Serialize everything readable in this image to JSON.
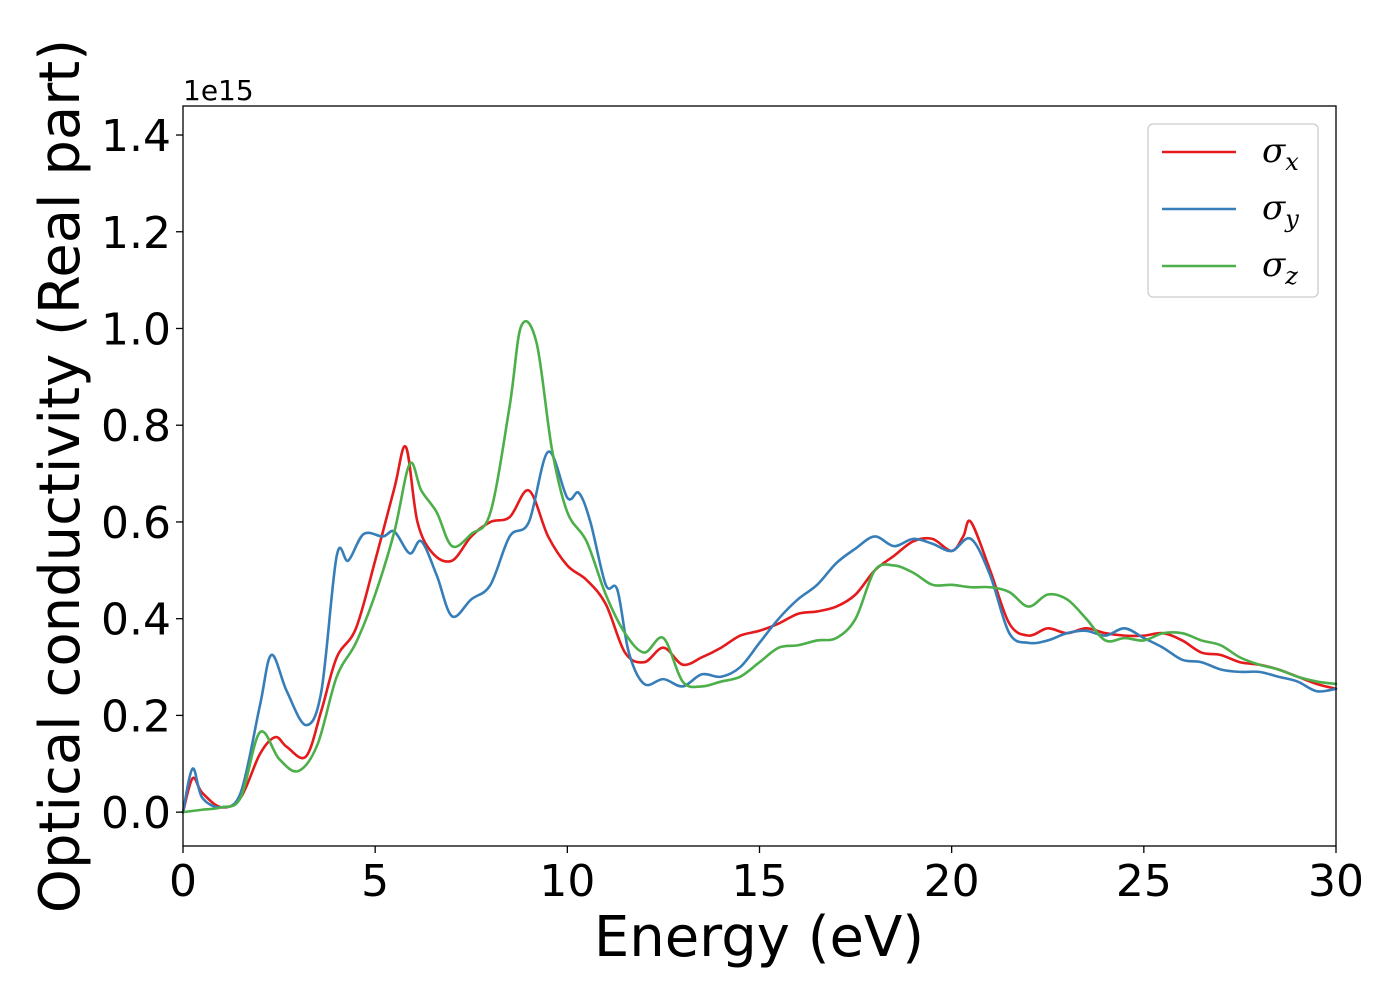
{
  "chart_data": {
    "type": "line",
    "title": "",
    "xlabel": "Energy (eV)",
    "ylabel": "Optical conductivity (Real part)",
    "y_offset_label": "1e15",
    "xlim": [
      0,
      30
    ],
    "ylim": [
      -0.07,
      1.46
    ],
    "x_ticks": [
      0,
      5,
      10,
      15,
      20,
      25,
      30
    ],
    "x_tick_labels": [
      "0",
      "5",
      "10",
      "15",
      "20",
      "25",
      "30"
    ],
    "y_ticks": [
      0.0,
      0.2,
      0.4,
      0.6,
      0.8,
      1.0,
      1.2,
      1.4
    ],
    "y_tick_labels": [
      "0.0",
      "0.2",
      "0.4",
      "0.6",
      "0.8",
      "1.0",
      "1.2",
      "1.4"
    ],
    "grid": false,
    "legend_position": "top-right",
    "series": [
      {
        "name": "σx",
        "symbol": "σ",
        "subscript": "x",
        "color": "#e41a1c",
        "x": [
          0,
          0.25,
          0.5,
          1.0,
          1.5,
          2.0,
          2.4,
          2.7,
          3.2,
          3.6,
          4.0,
          4.5,
          5.0,
          5.5,
          5.8,
          6.1,
          6.5,
          7.0,
          7.5,
          8.0,
          8.5,
          9.0,
          9.5,
          10.0,
          10.5,
          11.0,
          11.5,
          12.0,
          12.5,
          13.0,
          13.5,
          14.0,
          14.5,
          15.0,
          15.5,
          16.0,
          16.5,
          17.0,
          17.5,
          18.0,
          18.5,
          19.0,
          19.5,
          20.0,
          20.3,
          20.5,
          21.0,
          21.5,
          22.0,
          22.5,
          23.0,
          23.5,
          24.0,
          24.5,
          25.0,
          25.5,
          26.0,
          26.5,
          27.0,
          27.5,
          28.0,
          28.5,
          29.0,
          29.5,
          30.0
        ],
        "y": [
          0,
          0.07,
          0.04,
          0.01,
          0.03,
          0.12,
          0.155,
          0.135,
          0.115,
          0.21,
          0.32,
          0.38,
          0.52,
          0.67,
          0.755,
          0.6,
          0.535,
          0.52,
          0.57,
          0.6,
          0.61,
          0.665,
          0.57,
          0.51,
          0.48,
          0.43,
          0.33,
          0.31,
          0.34,
          0.305,
          0.32,
          0.34,
          0.365,
          0.375,
          0.39,
          0.41,
          0.415,
          0.425,
          0.45,
          0.5,
          0.53,
          0.56,
          0.565,
          0.54,
          0.57,
          0.6,
          0.5,
          0.39,
          0.365,
          0.38,
          0.37,
          0.38,
          0.37,
          0.365,
          0.365,
          0.37,
          0.355,
          0.33,
          0.325,
          0.31,
          0.305,
          0.295,
          0.28,
          0.265,
          0.255
        ]
      },
      {
        "name": "σy",
        "symbol": "σ",
        "subscript": "y",
        "color": "#377eb8",
        "x": [
          0,
          0.25,
          0.5,
          1.0,
          1.5,
          2.0,
          2.3,
          2.7,
          3.2,
          3.6,
          4.0,
          4.3,
          4.7,
          5.2,
          5.5,
          5.9,
          6.2,
          6.6,
          7.0,
          7.5,
          8.0,
          8.5,
          9.0,
          9.5,
          10.0,
          10.3,
          10.6,
          11.0,
          11.3,
          11.6,
          12.0,
          12.5,
          13.0,
          13.5,
          14.0,
          14.5,
          15.0,
          15.5,
          16.0,
          16.5,
          17.0,
          17.5,
          18.0,
          18.5,
          19.0,
          19.5,
          20.0,
          20.5,
          21.0,
          21.5,
          22.0,
          22.5,
          23.0,
          23.5,
          24.0,
          24.5,
          25.0,
          25.5,
          26.0,
          26.5,
          27.0,
          27.5,
          28.0,
          28.5,
          29.0,
          29.5,
          30.0
        ],
        "y": [
          0,
          0.09,
          0.03,
          0.01,
          0.04,
          0.22,
          0.325,
          0.25,
          0.18,
          0.25,
          0.53,
          0.52,
          0.575,
          0.57,
          0.58,
          0.535,
          0.56,
          0.49,
          0.405,
          0.44,
          0.47,
          0.57,
          0.6,
          0.745,
          0.65,
          0.66,
          0.6,
          0.47,
          0.46,
          0.33,
          0.265,
          0.275,
          0.26,
          0.285,
          0.28,
          0.3,
          0.35,
          0.4,
          0.44,
          0.47,
          0.515,
          0.545,
          0.57,
          0.55,
          0.565,
          0.555,
          0.54,
          0.565,
          0.49,
          0.37,
          0.35,
          0.355,
          0.37,
          0.375,
          0.365,
          0.38,
          0.36,
          0.34,
          0.315,
          0.31,
          0.295,
          0.29,
          0.29,
          0.28,
          0.27,
          0.25,
          0.255
        ]
      },
      {
        "name": "σz",
        "symbol": "σ",
        "subscript": "z",
        "color": "#4daf4a",
        "x": [
          0,
          0.5,
          1.0,
          1.5,
          2.0,
          2.5,
          3.0,
          3.5,
          4.0,
          4.5,
          5.0,
          5.5,
          5.9,
          6.2,
          6.6,
          7.0,
          7.5,
          8.0,
          8.5,
          8.8,
          9.2,
          9.6,
          10.0,
          10.5,
          11.0,
          11.5,
          12.0,
          12.5,
          13.0,
          13.5,
          14.0,
          14.5,
          15.0,
          15.5,
          16.0,
          16.5,
          17.0,
          17.5,
          18.0,
          18.5,
          19.0,
          19.5,
          20.0,
          20.5,
          21.0,
          21.5,
          22.0,
          22.5,
          23.0,
          23.5,
          24.0,
          24.5,
          25.0,
          25.5,
          26.0,
          26.5,
          27.0,
          27.5,
          28.0,
          28.5,
          29.0,
          29.5,
          30.0
        ],
        "y": [
          0,
          0.005,
          0.01,
          0.03,
          0.165,
          0.11,
          0.085,
          0.14,
          0.28,
          0.35,
          0.45,
          0.58,
          0.72,
          0.665,
          0.62,
          0.55,
          0.575,
          0.62,
          0.84,
          1.005,
          0.97,
          0.75,
          0.62,
          0.56,
          0.45,
          0.37,
          0.33,
          0.36,
          0.27,
          0.26,
          0.27,
          0.28,
          0.31,
          0.34,
          0.345,
          0.355,
          0.36,
          0.4,
          0.5,
          0.51,
          0.495,
          0.47,
          0.47,
          0.465,
          0.465,
          0.455,
          0.425,
          0.45,
          0.44,
          0.4,
          0.355,
          0.36,
          0.355,
          0.37,
          0.37,
          0.355,
          0.345,
          0.32,
          0.305,
          0.295,
          0.28,
          0.27,
          0.265
        ]
      }
    ]
  }
}
